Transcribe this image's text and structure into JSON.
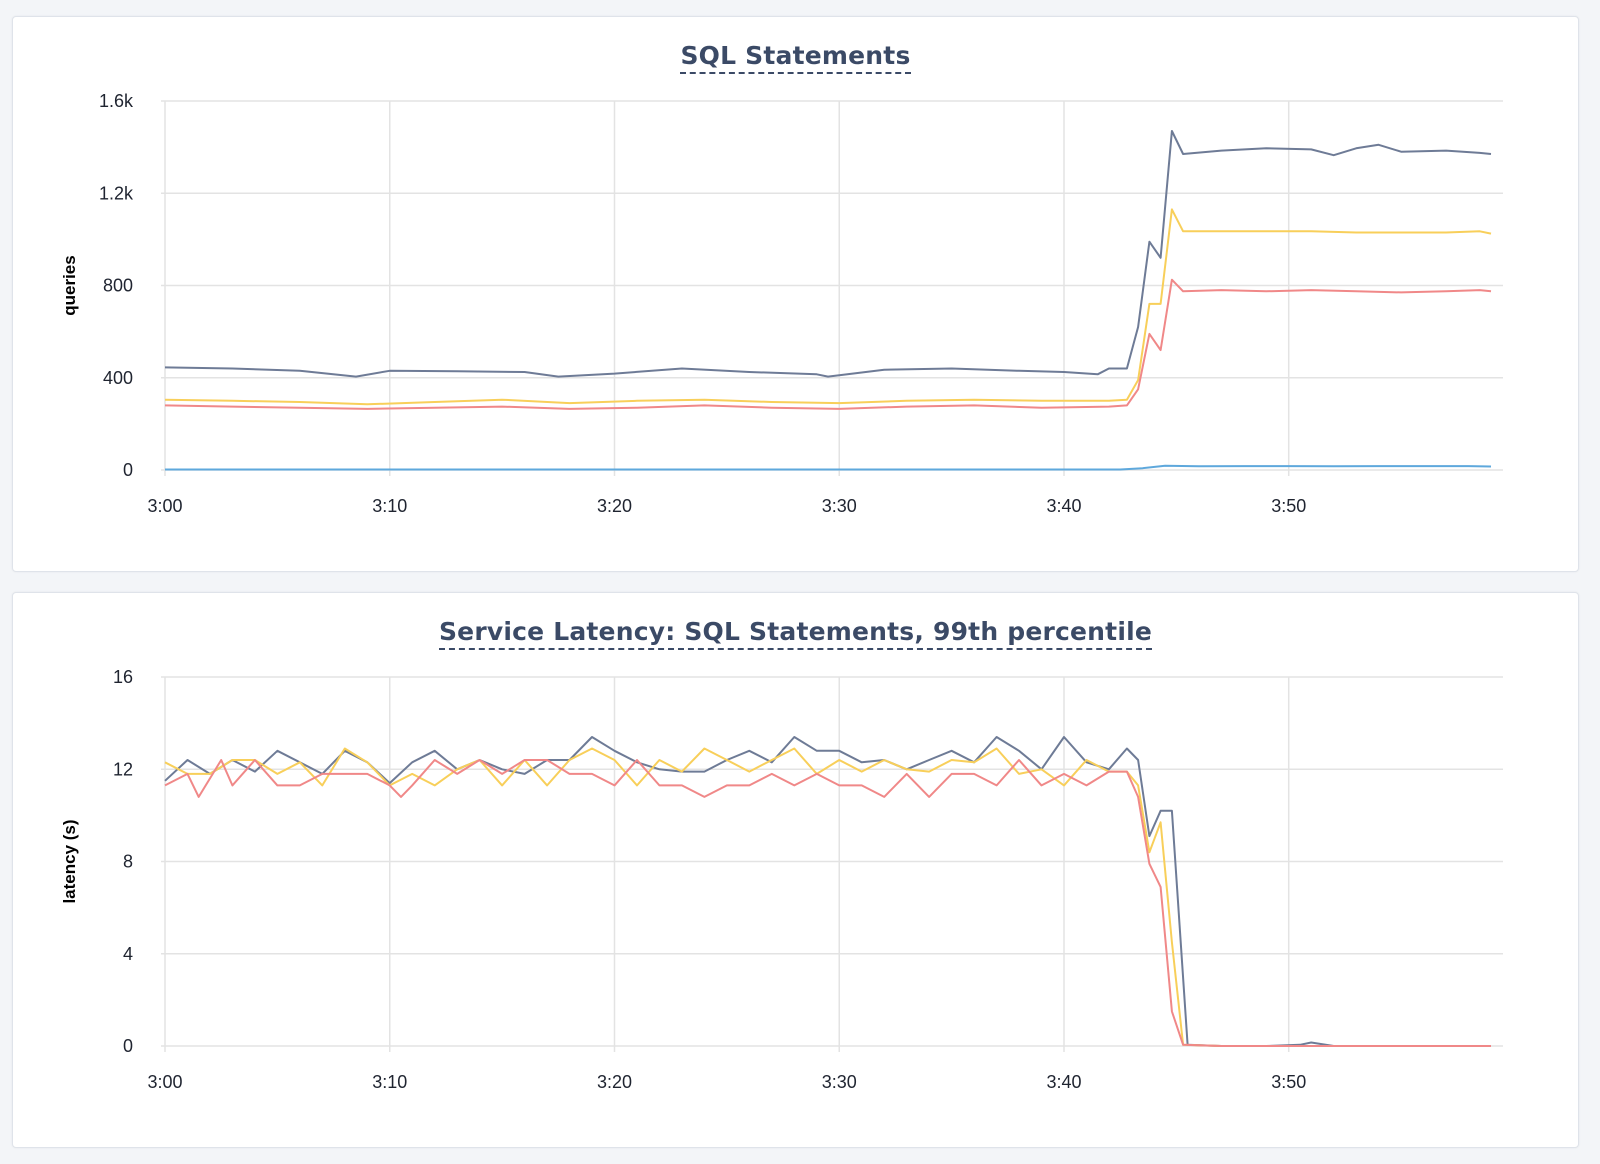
{
  "chart_data": [
    {
      "type": "line",
      "title": "SQL Statements",
      "ylabel": "queries",
      "xlabel": "",
      "ylim": [
        0,
        1600
      ],
      "yticks": [
        0,
        400,
        800,
        1200,
        1600
      ],
      "ytick_labels": [
        "0",
        "400",
        "800",
        "1.2k",
        "1.6k"
      ],
      "xlim": [
        0,
        59
      ],
      "xticks": [
        0,
        10,
        20,
        30,
        40,
        50
      ],
      "xtick_labels": [
        "3:00",
        "3:10",
        "3:20",
        "3:30",
        "3:40",
        "3:50"
      ],
      "grid": true,
      "series": [
        {
          "color": "#6e7b96",
          "points": [
            [
              0,
              445
            ],
            [
              3,
              440
            ],
            [
              6,
              430
            ],
            [
              8.5,
              405
            ],
            [
              10,
              430
            ],
            [
              13,
              428
            ],
            [
              16,
              425
            ],
            [
              17.5,
              405
            ],
            [
              20,
              418
            ],
            [
              23,
              440
            ],
            [
              26,
              425
            ],
            [
              29,
              415
            ],
            [
              29.5,
              405
            ],
            [
              32,
              435
            ],
            [
              35,
              440
            ],
            [
              38,
              430
            ],
            [
              40,
              425
            ],
            [
              41.5,
              415
            ],
            [
              42,
              440
            ],
            [
              42.8,
              440
            ],
            [
              43.3,
              620
            ],
            [
              43.8,
              990
            ],
            [
              44.3,
              920
            ],
            [
              44.8,
              1470
            ],
            [
              45.3,
              1370
            ],
            [
              47,
              1385
            ],
            [
              49,
              1395
            ],
            [
              51,
              1390
            ],
            [
              52,
              1365
            ],
            [
              53,
              1395
            ],
            [
              54,
              1410
            ],
            [
              55,
              1380
            ],
            [
              57,
              1385
            ],
            [
              58.5,
              1375
            ],
            [
              59,
              1370
            ]
          ]
        },
        {
          "color": "#f8cf5a",
          "points": [
            [
              0,
              305
            ],
            [
              3,
              300
            ],
            [
              6,
              295
            ],
            [
              9,
              285
            ],
            [
              12,
              295
            ],
            [
              15,
              305
            ],
            [
              18,
              290
            ],
            [
              21,
              300
            ],
            [
              24,
              305
            ],
            [
              27,
              295
            ],
            [
              30,
              290
            ],
            [
              33,
              300
            ],
            [
              36,
              305
            ],
            [
              39,
              300
            ],
            [
              42,
              300
            ],
            [
              42.8,
              305
            ],
            [
              43.3,
              390
            ],
            [
              43.8,
              720
            ],
            [
              44.3,
              720
            ],
            [
              44.8,
              1130
            ],
            [
              45.3,
              1035
            ],
            [
              47,
              1035
            ],
            [
              49,
              1035
            ],
            [
              51,
              1035
            ],
            [
              53,
              1030
            ],
            [
              55,
              1030
            ],
            [
              57,
              1030
            ],
            [
              58.5,
              1035
            ],
            [
              59,
              1025
            ]
          ]
        },
        {
          "color": "#f08888",
          "points": [
            [
              0,
              280
            ],
            [
              3,
              275
            ],
            [
              6,
              270
            ],
            [
              9,
              265
            ],
            [
              12,
              270
            ],
            [
              15,
              275
            ],
            [
              18,
              265
            ],
            [
              21,
              270
            ],
            [
              24,
              280
            ],
            [
              27,
              270
            ],
            [
              30,
              265
            ],
            [
              33,
              275
            ],
            [
              36,
              280
            ],
            [
              39,
              270
            ],
            [
              42,
              275
            ],
            [
              42.8,
              280
            ],
            [
              43.3,
              350
            ],
            [
              43.8,
              590
            ],
            [
              44.3,
              520
            ],
            [
              44.8,
              825
            ],
            [
              45.3,
              775
            ],
            [
              47,
              780
            ],
            [
              49,
              775
            ],
            [
              51,
              780
            ],
            [
              53,
              775
            ],
            [
              55,
              770
            ],
            [
              57,
              775
            ],
            [
              58.5,
              780
            ],
            [
              59,
              775
            ]
          ]
        },
        {
          "color": "#5ea8dc",
          "points": [
            [
              0,
              2
            ],
            [
              10,
              2
            ],
            [
              20,
              2
            ],
            [
              30,
              2
            ],
            [
              40,
              2
            ],
            [
              42.5,
              2
            ],
            [
              43.5,
              8
            ],
            [
              44.5,
              18
            ],
            [
              46,
              16
            ],
            [
              48,
              17
            ],
            [
              50,
              17
            ],
            [
              52,
              16
            ],
            [
              54,
              17
            ],
            [
              56,
              17
            ],
            [
              58,
              17
            ],
            [
              59,
              15
            ]
          ]
        }
      ]
    },
    {
      "type": "line",
      "title": "Service Latency: SQL Statements, 99th percentile",
      "ylabel": "latency (s)",
      "xlabel": "",
      "ylim": [
        0,
        16
      ],
      "yticks": [
        0,
        4,
        8,
        12,
        16
      ],
      "ytick_labels": [
        "0",
        "4",
        "8",
        "12",
        "16"
      ],
      "xlim": [
        0,
        59
      ],
      "xticks": [
        0,
        10,
        20,
        30,
        40,
        50
      ],
      "xtick_labels": [
        "3:00",
        "3:10",
        "3:20",
        "3:30",
        "3:40",
        "3:50"
      ],
      "grid": true,
      "series": [
        {
          "color": "#6e7b96",
          "points": [
            [
              0,
              11.5
            ],
            [
              1,
              12.4
            ],
            [
              2,
              11.8
            ],
            [
              3,
              12.4
            ],
            [
              4,
              11.9
            ],
            [
              5,
              12.8
            ],
            [
              6,
              12.3
            ],
            [
              7,
              11.8
            ],
            [
              8,
              12.8
            ],
            [
              9,
              12.3
            ],
            [
              10,
              11.4
            ],
            [
              11,
              12.3
            ],
            [
              12,
              12.8
            ],
            [
              13,
              12.0
            ],
            [
              14,
              12.4
            ],
            [
              15,
              12.0
            ],
            [
              16,
              11.8
            ],
            [
              17,
              12.4
            ],
            [
              18,
              12.4
            ],
            [
              19,
              13.4
            ],
            [
              20,
              12.8
            ],
            [
              21,
              12.3
            ],
            [
              22,
              12.0
            ],
            [
              23,
              11.9
            ],
            [
              24,
              11.9
            ],
            [
              25,
              12.4
            ],
            [
              26,
              12.8
            ],
            [
              27,
              12.3
            ],
            [
              28,
              13.4
            ],
            [
              29,
              12.8
            ],
            [
              30,
              12.8
            ],
            [
              31,
              12.3
            ],
            [
              32,
              12.4
            ],
            [
              33,
              12.0
            ],
            [
              34,
              12.4
            ],
            [
              35,
              12.8
            ],
            [
              36,
              12.3
            ],
            [
              37,
              13.4
            ],
            [
              38,
              12.8
            ],
            [
              39,
              12.0
            ],
            [
              40,
              13.4
            ],
            [
              41,
              12.3
            ],
            [
              42,
              12.0
            ],
            [
              42.8,
              12.9
            ],
            [
              43.3,
              12.4
            ],
            [
              43.8,
              9.1
            ],
            [
              44.3,
              10.2
            ],
            [
              44.8,
              10.2
            ],
            [
              45.5,
              0.05
            ],
            [
              47,
              0.0
            ],
            [
              49,
              0.0
            ],
            [
              50.5,
              0.05
            ],
            [
              51,
              0.15
            ],
            [
              52,
              0.0
            ],
            [
              55,
              0.0
            ],
            [
              59,
              0.0
            ]
          ]
        },
        {
          "color": "#f8cf5a",
          "points": [
            [
              0,
              12.3
            ],
            [
              1,
              11.8
            ],
            [
              2,
              11.8
            ],
            [
              3,
              12.4
            ],
            [
              4,
              12.4
            ],
            [
              5,
              11.8
            ],
            [
              6,
              12.3
            ],
            [
              7,
              11.3
            ],
            [
              8,
              12.9
            ],
            [
              9,
              12.3
            ],
            [
              10,
              11.3
            ],
            [
              11,
              11.8
            ],
            [
              12,
              11.3
            ],
            [
              13,
              12.0
            ],
            [
              14,
              12.4
            ],
            [
              15,
              11.3
            ],
            [
              16,
              12.4
            ],
            [
              17,
              11.3
            ],
            [
              18,
              12.4
            ],
            [
              19,
              12.9
            ],
            [
              20,
              12.4
            ],
            [
              21,
              11.3
            ],
            [
              22,
              12.4
            ],
            [
              23,
              11.9
            ],
            [
              24,
              12.9
            ],
            [
              25,
              12.4
            ],
            [
              26,
              11.9
            ],
            [
              27,
              12.4
            ],
            [
              28,
              12.9
            ],
            [
              29,
              11.8
            ],
            [
              30,
              12.4
            ],
            [
              31,
              11.9
            ],
            [
              32,
              12.4
            ],
            [
              33,
              12.0
            ],
            [
              34,
              11.9
            ],
            [
              35,
              12.4
            ],
            [
              36,
              12.3
            ],
            [
              37,
              12.9
            ],
            [
              38,
              11.8
            ],
            [
              39,
              12.0
            ],
            [
              40,
              11.3
            ],
            [
              41,
              12.4
            ],
            [
              42,
              11.9
            ],
            [
              42.8,
              11.9
            ],
            [
              43.3,
              11.3
            ],
            [
              43.8,
              8.4
            ],
            [
              44.3,
              9.7
            ],
            [
              44.8,
              4.5
            ],
            [
              45.3,
              0.05
            ],
            [
              47,
              0.0
            ],
            [
              50,
              0.0
            ],
            [
              55,
              0.0
            ],
            [
              59,
              0.0
            ]
          ]
        },
        {
          "color": "#f08888",
          "points": [
            [
              0,
              11.3
            ],
            [
              1,
              11.8
            ],
            [
              1.5,
              10.8
            ],
            [
              2.5,
              12.4
            ],
            [
              3,
              11.3
            ],
            [
              4,
              12.4
            ],
            [
              5,
              11.3
            ],
            [
              6,
              11.3
            ],
            [
              7,
              11.8
            ],
            [
              8,
              11.8
            ],
            [
              9,
              11.8
            ],
            [
              10,
              11.3
            ],
            [
              10.5,
              10.8
            ],
            [
              11,
              11.3
            ],
            [
              12,
              12.4
            ],
            [
              13,
              11.8
            ],
            [
              14,
              12.4
            ],
            [
              15,
              11.8
            ],
            [
              16,
              12.4
            ],
            [
              17,
              12.4
            ],
            [
              18,
              11.8
            ],
            [
              19,
              11.8
            ],
            [
              20,
              11.3
            ],
            [
              21,
              12.4
            ],
            [
              22,
              11.3
            ],
            [
              23,
              11.3
            ],
            [
              24,
              10.8
            ],
            [
              25,
              11.3
            ],
            [
              26,
              11.3
            ],
            [
              27,
              11.8
            ],
            [
              28,
              11.3
            ],
            [
              29,
              11.8
            ],
            [
              30,
              11.3
            ],
            [
              31,
              11.3
            ],
            [
              32,
              10.8
            ],
            [
              33,
              11.8
            ],
            [
              34,
              10.8
            ],
            [
              35,
              11.8
            ],
            [
              36,
              11.8
            ],
            [
              37,
              11.3
            ],
            [
              38,
              12.4
            ],
            [
              39,
              11.3
            ],
            [
              40,
              11.8
            ],
            [
              41,
              11.3
            ],
            [
              42,
              11.9
            ],
            [
              42.8,
              11.9
            ],
            [
              43.3,
              10.8
            ],
            [
              43.8,
              7.9
            ],
            [
              44.3,
              6.9
            ],
            [
              44.8,
              1.5
            ],
            [
              45.3,
              0.05
            ],
            [
              47,
              0.0
            ],
            [
              50,
              0.0
            ],
            [
              55,
              0.0
            ],
            [
              59,
              0.0
            ]
          ]
        }
      ]
    }
  ]
}
